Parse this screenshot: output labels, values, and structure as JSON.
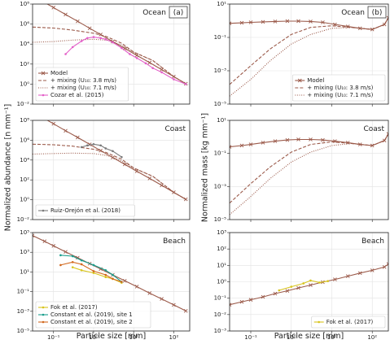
{
  "chart_data": [
    {
      "type": "line",
      "title": "Ocean",
      "panel_label": "(a)",
      "xscale": "log",
      "yscale": "log",
      "grid": true,
      "legend": "lower left",
      "show_xtick_labels": false,
      "xlim": [
        0.03,
        250
      ],
      "ylim": [
        0.01,
        100000000
      ],
      "xticks": [
        {
          "value": 0.1,
          "label": "10⁻¹"
        },
        {
          "value": 1,
          "label": "10⁰"
        },
        {
          "value": 10,
          "label": "10¹"
        },
        {
          "value": 100,
          "label": "10²"
        }
      ],
      "yticks": [
        {
          "value": 0.01,
          "label": "10⁻²"
        },
        {
          "value": 1,
          "label": "10⁰"
        },
        {
          "value": 100,
          "label": "10²"
        },
        {
          "value": 10000,
          "label": "10⁴"
        },
        {
          "value": 1000000,
          "label": "10⁶"
        },
        {
          "value": 100000000,
          "label": "10⁸"
        }
      ],
      "series": [
        {
          "name": "Model",
          "color": "#9b5a4a",
          "linestyle": "solid",
          "marker": "x",
          "x": [
            0.05,
            0.1,
            0.2,
            0.4,
            0.8,
            1.5,
            3,
            6,
            12,
            25,
            50,
            100,
            200
          ],
          "values": [
            220000000,
            45000000,
            9000000,
            1900000,
            380000,
            90000,
            18000,
            3700,
            740,
            140,
            28,
            5.6,
            1.1
          ]
        },
        {
          "name": "+ mixing (U₁₀: 3.8 m/s)",
          "color": "#9b5a4a",
          "linestyle": "dashed",
          "x": [
            0.03,
            0.1,
            0.3,
            1,
            2,
            3,
            5,
            10,
            30,
            100,
            200
          ],
          "values": [
            500000,
            400000,
            250000,
            120000,
            60000,
            30000,
            12000,
            1600,
            230,
            5.6,
            1.1
          ]
        },
        {
          "name": "+ mixing (U₁₀: 7.1 m/s)",
          "color": "#9b5a4a",
          "linestyle": "dotted",
          "x": [
            0.03,
            0.1,
            0.3,
            1,
            2,
            3,
            5,
            10,
            30,
            100,
            200
          ],
          "values": [
            15000,
            18000,
            25000,
            30000,
            25000,
            18000,
            8000,
            1500,
            230,
            5.6,
            1.1
          ]
        },
        {
          "name": "Cozar et al. (2015)",
          "color": "#e35fc8",
          "linestyle": "solid",
          "marker": "o",
          "x": [
            0.2,
            0.3,
            0.5,
            0.7,
            1,
            1.5,
            2,
            3,
            5,
            8,
            12,
            20,
            30,
            50,
            100,
            200
          ],
          "values": [
            1000,
            5000,
            20000,
            40000,
            50000,
            40000,
            30000,
            15000,
            4000,
            1000,
            400,
            120,
            40,
            15,
            3,
            1
          ]
        }
      ]
    },
    {
      "type": "line",
      "title": "Ocean",
      "panel_label": "(b)",
      "xscale": "log",
      "yscale": "log",
      "grid": true,
      "legend": "lower right",
      "show_xtick_labels": false,
      "xlim": [
        0.03,
        250
      ],
      "ylim": [
        1e-05,
        10
      ],
      "xticks": [
        {
          "value": 0.1,
          "label": "10⁻¹"
        },
        {
          "value": 1,
          "label": "10⁰"
        },
        {
          "value": 10,
          "label": "10¹"
        },
        {
          "value": 100,
          "label": "10²"
        }
      ],
      "yticks": [
        {
          "value": 1e-05,
          "label": "10⁻⁵"
        },
        {
          "value": 0.001,
          "label": "10⁻³"
        },
        {
          "value": 0.1,
          "label": "10⁻¹"
        },
        {
          "value": 10,
          "label": "10¹"
        }
      ],
      "series": [
        {
          "name": "Model",
          "color": "#9b5a4a",
          "linestyle": "solid",
          "marker": "x",
          "x": [
            0.03,
            0.06,
            0.1,
            0.2,
            0.4,
            0.8,
            1.5,
            3,
            6,
            12,
            25,
            50,
            100,
            200,
            250
          ],
          "values": [
            0.7,
            0.75,
            0.8,
            0.85,
            0.9,
            0.95,
            0.95,
            0.9,
            0.8,
            0.6,
            0.45,
            0.35,
            0.3,
            0.6,
            1.5
          ]
        },
        {
          "name": "+ mixing (U₁₀: 3.8 m/s)",
          "color": "#9b5a4a",
          "linestyle": "dashed",
          "x": [
            0.03,
            0.1,
            0.3,
            1,
            3,
            10,
            30,
            100,
            200,
            250
          ],
          "values": [
            0.00015,
            0.002,
            0.02,
            0.15,
            0.4,
            0.5,
            0.4,
            0.3,
            0.6,
            1.5
          ]
        },
        {
          "name": "+ mixing (U₁₀: 7.1 m/s)",
          "color": "#9b5a4a",
          "linestyle": "dotted",
          "x": [
            0.03,
            0.1,
            0.3,
            1,
            3,
            10,
            30,
            100,
            200,
            250
          ],
          "values": [
            3e-05,
            0.0003,
            0.004,
            0.04,
            0.15,
            0.35,
            0.4,
            0.3,
            0.6,
            1.5
          ]
        }
      ]
    },
    {
      "type": "line",
      "title": "Coast",
      "ylabel": "Normalized abundance [n mm⁻¹]",
      "xscale": "log",
      "yscale": "log",
      "grid": true,
      "legend": "lower left",
      "show_xtick_labels": false,
      "xlim": [
        0.03,
        250
      ],
      "ylim": [
        0.01,
        100000000
      ],
      "xticks": [
        {
          "value": 0.1,
          "label": "10⁻¹"
        },
        {
          "value": 1,
          "label": "10⁰"
        },
        {
          "value": 10,
          "label": "10¹"
        },
        {
          "value": 100,
          "label": "10²"
        }
      ],
      "yticks": [
        {
          "value": 0.01,
          "label": "10⁻²"
        },
        {
          "value": 1,
          "label": "10⁰"
        },
        {
          "value": 100,
          "label": "10²"
        },
        {
          "value": 10000,
          "label": "10⁴"
        },
        {
          "value": 1000000,
          "label": "10⁶"
        },
        {
          "value": 100000000,
          "label": "10⁸"
        }
      ],
      "series": [
        {
          "color": "#9b5a4a",
          "linestyle": "solid",
          "marker": "x",
          "x": [
            0.05,
            0.1,
            0.2,
            0.4,
            0.8,
            1.5,
            3,
            6,
            12,
            25,
            50,
            100,
            200
          ],
          "values": [
            220000000,
            45000000,
            9000000,
            1900000,
            380000,
            90000,
            18000,
            3700,
            740,
            140,
            28,
            5.6,
            1.1
          ]
        },
        {
          "color": "#9b5a4a",
          "linestyle": "dashed",
          "x": [
            0.03,
            0.1,
            0.3,
            1,
            2,
            3,
            5,
            10,
            30,
            100,
            200
          ],
          "values": [
            400000,
            350000,
            250000,
            120000,
            60000,
            30000,
            12000,
            1600,
            230,
            5.6,
            1.1
          ]
        },
        {
          "color": "#9b5a4a",
          "linestyle": "dotted",
          "x": [
            0.03,
            0.1,
            0.3,
            1,
            2,
            3,
            5,
            10,
            30,
            100,
            200
          ],
          "values": [
            40000,
            45000,
            50000,
            45000,
            30000,
            20000,
            8000,
            1500,
            230,
            5.6,
            1.1
          ]
        },
        {
          "name": "Ruiz-Orejón et al. (2018)",
          "color": "#7a7a7a",
          "linestyle": "solid",
          "marker": "o",
          "x": [
            0.5,
            0.7,
            1,
            1.5,
            2,
            3,
            5
          ],
          "values": [
            200000,
            300000,
            400000,
            300000,
            150000,
            80000,
            20000
          ]
        }
      ]
    },
    {
      "type": "line",
      "title": "Coast",
      "ylabel": "Normalized mass [kg mm⁻¹]",
      "xscale": "log",
      "yscale": "log",
      "grid": true,
      "show_xtick_labels": false,
      "xlim": [
        0.03,
        250
      ],
      "ylim": [
        1e-05,
        10
      ],
      "xticks": [
        {
          "value": 0.1,
          "label": "10⁻¹"
        },
        {
          "value": 1,
          "label": "10⁰"
        },
        {
          "value": 10,
          "label": "10¹"
        },
        {
          "value": 100,
          "label": "10²"
        }
      ],
      "yticks": [
        {
          "value": 1e-05,
          "label": "10⁻⁵"
        },
        {
          "value": 0.001,
          "label": "10⁻³"
        },
        {
          "value": 0.1,
          "label": "10⁻¹"
        },
        {
          "value": 10,
          "label": "10¹"
        }
      ],
      "series": [
        {
          "color": "#9b5a4a",
          "linestyle": "solid",
          "marker": "x",
          "x": [
            0.03,
            0.06,
            0.1,
            0.2,
            0.4,
            0.8,
            1.5,
            3,
            6,
            12,
            25,
            50,
            100,
            200,
            250
          ],
          "values": [
            0.25,
            0.3,
            0.35,
            0.45,
            0.55,
            0.65,
            0.7,
            0.7,
            0.65,
            0.55,
            0.45,
            0.35,
            0.3,
            0.6,
            1.5
          ]
        },
        {
          "color": "#9b5a4a",
          "linestyle": "dashed",
          "x": [
            0.03,
            0.1,
            0.3,
            1,
            3,
            10,
            30,
            100,
            200,
            250
          ],
          "values": [
            0.0001,
            0.0015,
            0.015,
            0.12,
            0.35,
            0.5,
            0.4,
            0.3,
            0.6,
            1.5
          ]
        },
        {
          "color": "#9b5a4a",
          "linestyle": "dotted",
          "x": [
            0.03,
            0.1,
            0.3,
            1,
            3,
            10,
            30,
            100,
            200,
            250
          ],
          "values": [
            2e-05,
            0.00025,
            0.003,
            0.03,
            0.12,
            0.3,
            0.4,
            0.3,
            0.6,
            1.5
          ]
        }
      ]
    },
    {
      "type": "line",
      "title": "Beach",
      "xlabel": "Particle size [mm]",
      "xscale": "log",
      "yscale": "log",
      "grid": true,
      "legend": "lower left",
      "show_xtick_labels": true,
      "xlim": [
        0.03,
        250
      ],
      "ylim": [
        1e-05,
        100000
      ],
      "xticks": [
        {
          "value": 0.1,
          "label": "10⁻¹"
        },
        {
          "value": 1,
          "label": "10⁰"
        },
        {
          "value": 10,
          "label": "10¹"
        },
        {
          "value": 100,
          "label": "10²"
        }
      ],
      "yticks": [
        {
          "value": 1e-05,
          "label": "10⁻⁵"
        },
        {
          "value": 0.001,
          "label": "10⁻³"
        },
        {
          "value": 0.1,
          "label": "10⁻¹"
        },
        {
          "value": 10,
          "label": "10¹"
        },
        {
          "value": 1000,
          "label": "10³"
        },
        {
          "value": 100000,
          "label": "10⁵"
        }
      ],
      "series": [
        {
          "color": "#9b5a4a",
          "linestyle": "solid",
          "marker": "x",
          "x": [
            0.03,
            0.06,
            0.1,
            0.2,
            0.4,
            0.8,
            1.5,
            3,
            6,
            12,
            25,
            50,
            100,
            200
          ],
          "values": [
            50000,
            13000,
            4500,
            1100,
            280,
            70,
            20,
            5,
            1.26,
            0.32,
            0.07,
            0.018,
            0.0045,
            0.0011
          ]
        },
        {
          "name": "Fok et al. (2017)",
          "color": "#d8c41a",
          "linestyle": "solid",
          "marker": "o",
          "x": [
            0.3,
            0.5,
            1,
            2,
            3,
            5
          ],
          "values": [
            30,
            15,
            8,
            3,
            2,
            0.8
          ]
        },
        {
          "name": "Constant et al. (2019), site 1",
          "color": "#1a9e8c",
          "linestyle": "solid",
          "marker": "o",
          "x": [
            0.15,
            0.3,
            0.5,
            1,
            2,
            3,
            5
          ],
          "values": [
            500,
            400,
            150,
            50,
            15,
            5,
            1
          ]
        },
        {
          "name": "Constant et al. (2019), site 2",
          "color": "#d2691e",
          "linestyle": "solid",
          "marker": "o",
          "x": [
            0.15,
            0.3,
            0.5,
            1,
            2,
            3,
            5
          ],
          "values": [
            50,
            100,
            60,
            12,
            5,
            2,
            1
          ]
        }
      ]
    },
    {
      "type": "line",
      "title": "Beach",
      "xlabel": "Particle size [mm]",
      "xscale": "log",
      "yscale": "log",
      "grid": true,
      "legend": "lower right",
      "show_xtick_labels": true,
      "xlim": [
        0.03,
        250
      ],
      "ylim": [
        0.001,
        1000
      ],
      "xticks": [
        {
          "value": 0.1,
          "label": "10⁻¹"
        },
        {
          "value": 1,
          "label": "10⁰"
        },
        {
          "value": 10,
          "label": "10¹"
        },
        {
          "value": 100,
          "label": "10²"
        }
      ],
      "yticks": [
        {
          "value": 0.001,
          "label": "10⁻³"
        },
        {
          "value": 0.01,
          "label": "10⁻²"
        },
        {
          "value": 0.1,
          "label": "10⁻¹"
        },
        {
          "value": 1,
          "label": "10⁰"
        },
        {
          "value": 10,
          "label": "10¹"
        },
        {
          "value": 100,
          "label": "10²"
        },
        {
          "value": 1000,
          "label": "10³"
        }
      ],
      "series": [
        {
          "color": "#9b5a4a",
          "linestyle": "solid",
          "marker": "x",
          "x": [
            0.03,
            0.06,
            0.1,
            0.2,
            0.4,
            0.8,
            1.5,
            3,
            6,
            12,
            25,
            50,
            100,
            200,
            250
          ],
          "values": [
            0.04,
            0.06,
            0.08,
            0.12,
            0.19,
            0.28,
            0.42,
            0.63,
            0.95,
            1.4,
            2.2,
            3.4,
            5,
            8,
            12
          ]
        },
        {
          "name": "Fok et al. (2017)",
          "color": "#d8c41a",
          "linestyle": "solid",
          "marker": "o",
          "x": [
            0.5,
            1,
            2,
            3,
            5,
            8
          ],
          "values": [
            0.3,
            0.5,
            0.8,
            1.2,
            0.9,
            1.1
          ]
        }
      ]
    }
  ]
}
